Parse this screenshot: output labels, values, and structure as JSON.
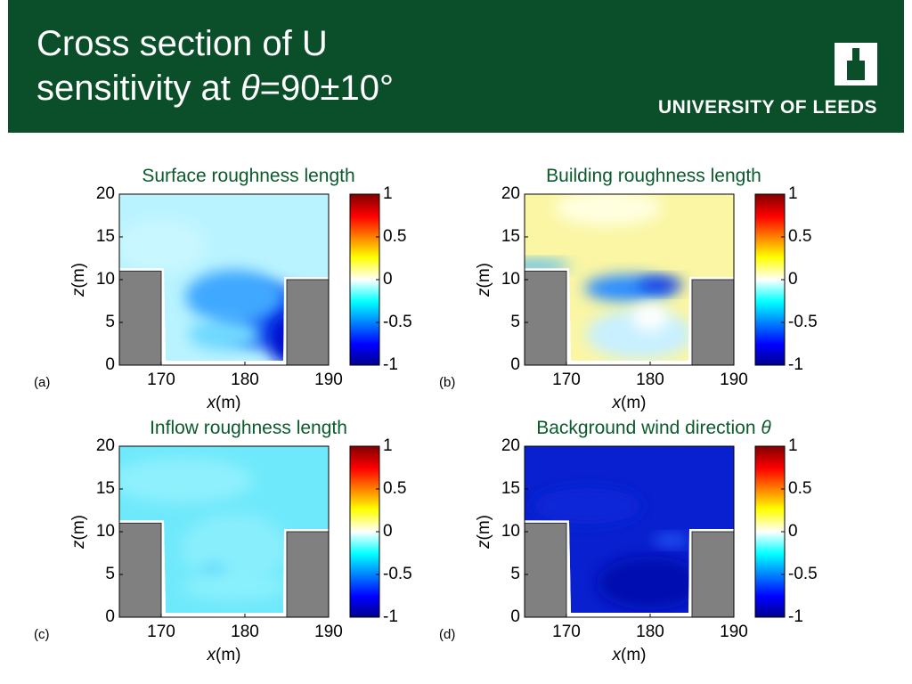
{
  "header": {
    "title_line1": "Cross section of U",
    "title_line2": "sensitivity at ",
    "title_symbol": "θ",
    "title_suffix": "=90±10°",
    "logo": "UNIVERSITY OF LEEDS"
  },
  "chart_data": [
    {
      "type": "contour",
      "title": "Surface roughness length",
      "panel": "(a)",
      "xlabel_symbol": "x",
      "xlabel_unit": "(m)",
      "ylabel_symbol": "z",
      "ylabel_unit": "(m)",
      "xlim": [
        165,
        190
      ],
      "xticks": [
        170,
        180,
        190
      ],
      "ylim": [
        0,
        20
      ],
      "yticks": [
        0,
        5,
        10,
        15,
        20
      ],
      "clim": [
        -1,
        1
      ],
      "cticks": [
        -1,
        -0.5,
        0,
        0.5,
        1
      ],
      "buildings": [
        {
          "x": [
            165,
            170
          ],
          "height": 11
        },
        {
          "x": [
            185,
            190
          ],
          "height": 10
        }
      ]
    },
    {
      "type": "contour",
      "title": "Building roughness length",
      "panel": "(b)",
      "xlabel_symbol": "x",
      "xlabel_unit": "(m)",
      "ylabel_symbol": "z",
      "ylabel_unit": "(m)",
      "xlim": [
        165,
        190
      ],
      "xticks": [
        170,
        180,
        190
      ],
      "ylim": [
        0,
        20
      ],
      "yticks": [
        0,
        5,
        10,
        15,
        20
      ],
      "clim": [
        -1,
        1
      ],
      "cticks": [
        -1,
        -0.5,
        0,
        0.5,
        1
      ],
      "buildings": [
        {
          "x": [
            165,
            170
          ],
          "height": 11
        },
        {
          "x": [
            185,
            190
          ],
          "height": 10
        }
      ]
    },
    {
      "type": "contour",
      "title": "Inflow roughness length",
      "panel": "(c)",
      "xlabel_symbol": "x",
      "xlabel_unit": "(m)",
      "ylabel_symbol": "z",
      "ylabel_unit": "(m)",
      "xlim": [
        165,
        190
      ],
      "xticks": [
        170,
        180,
        190
      ],
      "ylim": [
        0,
        20
      ],
      "yticks": [
        0,
        5,
        10,
        15,
        20
      ],
      "clim": [
        -1,
        1
      ],
      "cticks": [
        -1,
        -0.5,
        0,
        0.5,
        1
      ],
      "buildings": [
        {
          "x": [
            165,
            170
          ],
          "height": 11
        },
        {
          "x": [
            185,
            190
          ],
          "height": 10
        }
      ]
    },
    {
      "type": "contour",
      "title": "Background wind direction ",
      "title_symbol": "θ",
      "panel": "(d)",
      "xlabel_symbol": "x",
      "xlabel_unit": "(m)",
      "ylabel_symbol": "z",
      "ylabel_unit": "(m)",
      "xlim": [
        165,
        190
      ],
      "xticks": [
        170,
        180,
        190
      ],
      "ylim": [
        0,
        20
      ],
      "yticks": [
        0,
        5,
        10,
        15,
        20
      ],
      "clim": [
        -1,
        1
      ],
      "cticks": [
        -1,
        -0.5,
        0,
        0.5,
        1
      ],
      "buildings": [
        {
          "x": [
            165,
            170
          ],
          "height": 11
        },
        {
          "x": [
            185,
            190
          ],
          "height": 10
        }
      ]
    }
  ]
}
